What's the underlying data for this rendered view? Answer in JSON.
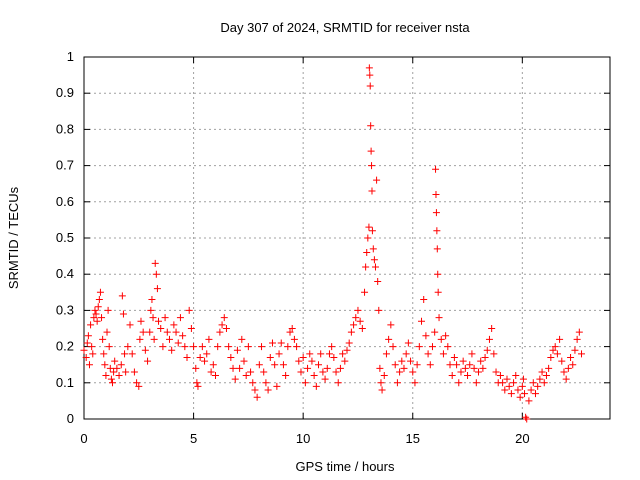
{
  "chart_data": {
    "type": "scatter",
    "title": "Day 307 of 2024, SRMTID for receiver nsta",
    "xlabel": "GPS time / hours",
    "ylabel": "SRMTID / TECUs",
    "xlim": [
      0,
      24
    ],
    "ylim": [
      0,
      1
    ],
    "xticks": [
      0,
      5,
      10,
      15,
      20
    ],
    "yticks": [
      0,
      0.1,
      0.2,
      0.3,
      0.4,
      0.5,
      0.6,
      0.7,
      0.8,
      0.9,
      1
    ],
    "grid": true,
    "marker": "+",
    "color": "#ff0000",
    "series": [
      {
        "name": "nsta",
        "points": [
          [
            0.0,
            0.19
          ],
          [
            0.1,
            0.17
          ],
          [
            0.15,
            0.21
          ],
          [
            0.2,
            0.23
          ],
          [
            0.25,
            0.15
          ],
          [
            0.3,
            0.26
          ],
          [
            0.35,
            0.2
          ],
          [
            0.4,
            0.18
          ],
          [
            0.45,
            0.28
          ],
          [
            0.5,
            0.3
          ],
          [
            0.55,
            0.29
          ],
          [
            0.6,
            0.27
          ],
          [
            0.65,
            0.31
          ],
          [
            0.7,
            0.33
          ],
          [
            0.75,
            0.35
          ],
          [
            0.8,
            0.28
          ],
          [
            0.85,
            0.22
          ],
          [
            0.9,
            0.18
          ],
          [
            0.95,
            0.15
          ],
          [
            1.0,
            0.12
          ],
          [
            1.05,
            0.24
          ],
          [
            1.1,
            0.3
          ],
          [
            1.15,
            0.2
          ],
          [
            1.2,
            0.14
          ],
          [
            1.25,
            0.11
          ],
          [
            1.3,
            0.1
          ],
          [
            1.35,
            0.13
          ],
          [
            1.4,
            0.16
          ],
          [
            1.5,
            0.14
          ],
          [
            1.6,
            0.12
          ],
          [
            1.7,
            0.15
          ],
          [
            1.75,
            0.34
          ],
          [
            1.8,
            0.29
          ],
          [
            1.85,
            0.18
          ],
          [
            1.9,
            0.13
          ],
          [
            2.0,
            0.2
          ],
          [
            2.1,
            0.26
          ],
          [
            2.2,
            0.18
          ],
          [
            2.3,
            0.13
          ],
          [
            2.4,
            0.1
          ],
          [
            2.5,
            0.09
          ],
          [
            2.55,
            0.22
          ],
          [
            2.6,
            0.27
          ],
          [
            2.7,
            0.24
          ],
          [
            2.8,
            0.19
          ],
          [
            2.9,
            0.16
          ],
          [
            3.0,
            0.24
          ],
          [
            3.05,
            0.3
          ],
          [
            3.1,
            0.33
          ],
          [
            3.15,
            0.28
          ],
          [
            3.2,
            0.22
          ],
          [
            3.25,
            0.43
          ],
          [
            3.3,
            0.4
          ],
          [
            3.35,
            0.36
          ],
          [
            3.4,
            0.27
          ],
          [
            3.5,
            0.25
          ],
          [
            3.6,
            0.2
          ],
          [
            3.7,
            0.28
          ],
          [
            3.8,
            0.24
          ],
          [
            3.9,
            0.22
          ],
          [
            4.0,
            0.19
          ],
          [
            4.1,
            0.26
          ],
          [
            4.2,
            0.24
          ],
          [
            4.3,
            0.21
          ],
          [
            4.4,
            0.28
          ],
          [
            4.5,
            0.23
          ],
          [
            4.6,
            0.2
          ],
          [
            4.7,
            0.17
          ],
          [
            4.8,
            0.3
          ],
          [
            4.9,
            0.25
          ],
          [
            5.0,
            0.2
          ],
          [
            5.1,
            0.14
          ],
          [
            5.15,
            0.1
          ],
          [
            5.2,
            0.09
          ],
          [
            5.3,
            0.17
          ],
          [
            5.4,
            0.2
          ],
          [
            5.5,
            0.16
          ],
          [
            5.6,
            0.18
          ],
          [
            5.7,
            0.22
          ],
          [
            5.8,
            0.13
          ],
          [
            5.9,
            0.15
          ],
          [
            6.0,
            0.12
          ],
          [
            6.1,
            0.2
          ],
          [
            6.2,
            0.24
          ],
          [
            6.3,
            0.26
          ],
          [
            6.4,
            0.28
          ],
          [
            6.5,
            0.25
          ],
          [
            6.6,
            0.2
          ],
          [
            6.7,
            0.17
          ],
          [
            6.8,
            0.14
          ],
          [
            6.9,
            0.11
          ],
          [
            7.0,
            0.19
          ],
          [
            7.1,
            0.14
          ],
          [
            7.2,
            0.22
          ],
          [
            7.3,
            0.16
          ],
          [
            7.4,
            0.12
          ],
          [
            7.5,
            0.2
          ],
          [
            7.6,
            0.13
          ],
          [
            7.7,
            0.1
          ],
          [
            7.8,
            0.08
          ],
          [
            7.9,
            0.06
          ],
          [
            8.0,
            0.15
          ],
          [
            8.1,
            0.2
          ],
          [
            8.2,
            0.13
          ],
          [
            8.3,
            0.1
          ],
          [
            8.4,
            0.08
          ],
          [
            8.5,
            0.17
          ],
          [
            8.6,
            0.21
          ],
          [
            8.7,
            0.15
          ],
          [
            8.8,
            0.09
          ],
          [
            8.9,
            0.18
          ],
          [
            9.0,
            0.21
          ],
          [
            9.1,
            0.15
          ],
          [
            9.2,
            0.12
          ],
          [
            9.3,
            0.2
          ],
          [
            9.4,
            0.24
          ],
          [
            9.5,
            0.25
          ],
          [
            9.6,
            0.22
          ],
          [
            9.7,
            0.2
          ],
          [
            9.8,
            0.16
          ],
          [
            9.9,
            0.13
          ],
          [
            10.0,
            0.17
          ],
          [
            10.1,
            0.1
          ],
          [
            10.2,
            0.14
          ],
          [
            10.3,
            0.18
          ],
          [
            10.4,
            0.16
          ],
          [
            10.5,
            0.12
          ],
          [
            10.6,
            0.09
          ],
          [
            10.7,
            0.15
          ],
          [
            10.8,
            0.18
          ],
          [
            10.9,
            0.13
          ],
          [
            11.0,
            0.11
          ],
          [
            11.1,
            0.14
          ],
          [
            11.2,
            0.18
          ],
          [
            11.3,
            0.2
          ],
          [
            11.4,
            0.17
          ],
          [
            11.5,
            0.13
          ],
          [
            11.6,
            0.1
          ],
          [
            11.7,
            0.14
          ],
          [
            11.8,
            0.18
          ],
          [
            11.9,
            0.16
          ],
          [
            12.0,
            0.19
          ],
          [
            12.1,
            0.21
          ],
          [
            12.2,
            0.24
          ],
          [
            12.3,
            0.26
          ],
          [
            12.4,
            0.28
          ],
          [
            12.5,
            0.3
          ],
          [
            12.6,
            0.27
          ],
          [
            12.7,
            0.25
          ],
          [
            12.8,
            0.35
          ],
          [
            12.85,
            0.42
          ],
          [
            12.9,
            0.46
          ],
          [
            12.95,
            0.5
          ],
          [
            13.0,
            0.53
          ],
          [
            13.02,
            0.97
          ],
          [
            13.04,
            0.95
          ],
          [
            13.06,
            0.92
          ],
          [
            13.08,
            0.81
          ],
          [
            13.1,
            0.74
          ],
          [
            13.12,
            0.7
          ],
          [
            13.14,
            0.63
          ],
          [
            13.16,
            0.52
          ],
          [
            13.2,
            0.47
          ],
          [
            13.25,
            0.44
          ],
          [
            13.3,
            0.42
          ],
          [
            13.35,
            0.66
          ],
          [
            13.4,
            0.38
          ],
          [
            13.45,
            0.3
          ],
          [
            13.5,
            0.14
          ],
          [
            13.55,
            0.1
          ],
          [
            13.6,
            0.08
          ],
          [
            13.7,
            0.12
          ],
          [
            13.8,
            0.18
          ],
          [
            13.9,
            0.22
          ],
          [
            14.0,
            0.26
          ],
          [
            14.1,
            0.2
          ],
          [
            14.2,
            0.15
          ],
          [
            14.3,
            0.1
          ],
          [
            14.4,
            0.13
          ],
          [
            14.5,
            0.16
          ],
          [
            14.6,
            0.14
          ],
          [
            14.7,
            0.18
          ],
          [
            14.8,
            0.21
          ],
          [
            14.9,
            0.16
          ],
          [
            15.0,
            0.13
          ],
          [
            15.1,
            0.1
          ],
          [
            15.2,
            0.15
          ],
          [
            15.3,
            0.2
          ],
          [
            15.4,
            0.27
          ],
          [
            15.5,
            0.33
          ],
          [
            15.6,
            0.23
          ],
          [
            15.7,
            0.18
          ],
          [
            15.8,
            0.15
          ],
          [
            15.9,
            0.2
          ],
          [
            16.0,
            0.24
          ],
          [
            16.04,
            0.69
          ],
          [
            16.06,
            0.62
          ],
          [
            16.08,
            0.57
          ],
          [
            16.1,
            0.52
          ],
          [
            16.12,
            0.47
          ],
          [
            16.14,
            0.4
          ],
          [
            16.16,
            0.35
          ],
          [
            16.2,
            0.28
          ],
          [
            16.3,
            0.22
          ],
          [
            16.4,
            0.18
          ],
          [
            16.5,
            0.23
          ],
          [
            16.6,
            0.2
          ],
          [
            16.7,
            0.15
          ],
          [
            16.8,
            0.12
          ],
          [
            16.9,
            0.17
          ],
          [
            17.0,
            0.15
          ],
          [
            17.1,
            0.1
          ],
          [
            17.2,
            0.13
          ],
          [
            17.3,
            0.16
          ],
          [
            17.4,
            0.14
          ],
          [
            17.5,
            0.12
          ],
          [
            17.6,
            0.15
          ],
          [
            17.7,
            0.18
          ],
          [
            17.8,
            0.14
          ],
          [
            17.9,
            0.1
          ],
          [
            18.0,
            0.13
          ],
          [
            18.1,
            0.16
          ],
          [
            18.2,
            0.14
          ],
          [
            18.3,
            0.17
          ],
          [
            18.4,
            0.19
          ],
          [
            18.5,
            0.22
          ],
          [
            18.6,
            0.25
          ],
          [
            18.7,
            0.18
          ],
          [
            18.8,
            0.13
          ],
          [
            18.9,
            0.1
          ],
          [
            19.0,
            0.12
          ],
          [
            19.1,
            0.1
          ],
          [
            19.2,
            0.08
          ],
          [
            19.3,
            0.11
          ],
          [
            19.4,
            0.09
          ],
          [
            19.5,
            0.07
          ],
          [
            19.6,
            0.1
          ],
          [
            19.7,
            0.12
          ],
          [
            19.8,
            0.08
          ],
          [
            19.9,
            0.06
          ],
          [
            20.0,
            0.09
          ],
          [
            20.05,
            0.11
          ],
          [
            20.1,
            0.07
          ],
          [
            20.15,
            0.005
          ],
          [
            20.2,
            0.0
          ],
          [
            20.3,
            0.05
          ],
          [
            20.4,
            0.08
          ],
          [
            20.5,
            0.1
          ],
          [
            20.6,
            0.07
          ],
          [
            20.7,
            0.09
          ],
          [
            20.8,
            0.11
          ],
          [
            20.9,
            0.13
          ],
          [
            21.0,
            0.1
          ],
          [
            21.1,
            0.12
          ],
          [
            21.2,
            0.14
          ],
          [
            21.3,
            0.17
          ],
          [
            21.4,
            0.19
          ],
          [
            21.5,
            0.2
          ],
          [
            21.6,
            0.18
          ],
          [
            21.7,
            0.22
          ],
          [
            21.8,
            0.16
          ],
          [
            21.9,
            0.13
          ],
          [
            22.0,
            0.11
          ],
          [
            22.1,
            0.14
          ],
          [
            22.2,
            0.17
          ],
          [
            22.3,
            0.15
          ],
          [
            22.4,
            0.19
          ],
          [
            22.5,
            0.22
          ],
          [
            22.6,
            0.24
          ],
          [
            22.7,
            0.18
          ]
        ]
      }
    ]
  }
}
